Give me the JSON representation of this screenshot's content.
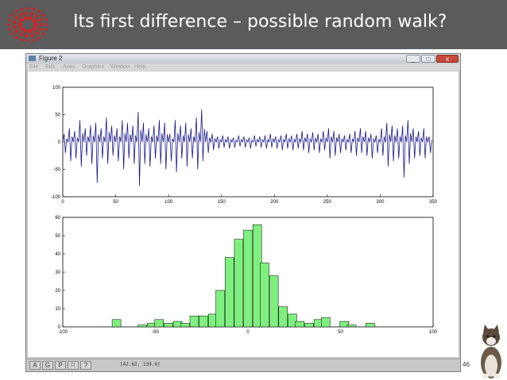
{
  "slide": {
    "title": "Its first difference – possible random walk?",
    "page_number": "46"
  },
  "window": {
    "title": "Figure 2",
    "buttons": [
      "_",
      "□",
      "x"
    ],
    "menu": [
      "File",
      "Edit",
      "Axes",
      "Graphics",
      "Window",
      "Help"
    ],
    "toolbar_buttons": [
      "A",
      "G",
      "P",
      "R",
      "?"
    ],
    "coordinates": "[42.62, 139.9]"
  },
  "chart_data": [
    {
      "type": "line",
      "title": "",
      "xlabel": "",
      "ylabel": "",
      "xlim": [
        0,
        350
      ],
      "ylim": [
        -100,
        100
      ],
      "xticks": [
        0,
        50,
        100,
        150,
        200,
        250,
        300,
        350
      ],
      "yticks": [
        -100,
        -50,
        0,
        50,
        100
      ],
      "xtick_labels": [
        "0",
        "50",
        "100",
        "150",
        "200",
        "250",
        "300",
        "350"
      ],
      "ytick_labels": [
        "-100",
        "-50",
        "0",
        "50",
        "100"
      ],
      "color": "#1a1a8c",
      "grid": false,
      "envelope": {
        "x": [
          0,
          5,
          10,
          15,
          20,
          25,
          30,
          35,
          40,
          45,
          50,
          55,
          60,
          65,
          70,
          75,
          80,
          85,
          90,
          95,
          100,
          105,
          110,
          115,
          120,
          125,
          130,
          135,
          140,
          145,
          150,
          155,
          160,
          165,
          170,
          175,
          180,
          185,
          190,
          195,
          200,
          205,
          210,
          215,
          220,
          225,
          230,
          235,
          240,
          245,
          250,
          255,
          260,
          265,
          270,
          275,
          280,
          285,
          290,
          295,
          300,
          305,
          310,
          315,
          320,
          325,
          330,
          335,
          340,
          345
        ],
        "max": [
          15,
          25,
          20,
          40,
          25,
          30,
          35,
          25,
          45,
          30,
          25,
          40,
          35,
          30,
          55,
          35,
          25,
          30,
          40,
          35,
          15,
          40,
          30,
          35,
          25,
          45,
          60,
          20,
          15,
          10,
          12,
          10,
          8,
          12,
          10,
          8,
          12,
          10,
          12,
          15,
          10,
          12,
          15,
          12,
          15,
          20,
          15,
          18,
          15,
          20,
          25,
          20,
          15,
          12,
          15,
          20,
          25,
          20,
          15,
          12,
          25,
          35,
          30,
          25,
          30,
          40,
          25,
          20,
          25,
          10
        ],
        "min": [
          -20,
          -35,
          -30,
          -45,
          -25,
          -40,
          -75,
          -30,
          -40,
          -25,
          -35,
          -50,
          -30,
          -40,
          -80,
          -40,
          -45,
          -30,
          -40,
          -50,
          -35,
          -55,
          -30,
          -45,
          -30,
          -50,
          -35,
          -20,
          -15,
          -12,
          -10,
          -12,
          -10,
          -8,
          -10,
          -12,
          -8,
          -10,
          -12,
          -10,
          -12,
          -15,
          -12,
          -15,
          -12,
          -15,
          -20,
          -15,
          -20,
          -15,
          -30,
          -25,
          -20,
          -15,
          -20,
          -25,
          -20,
          -25,
          -30,
          -20,
          -25,
          -45,
          -35,
          -30,
          -65,
          -40,
          -30,
          -25,
          -30,
          -20
        ]
      }
    },
    {
      "type": "bar",
      "title": "",
      "xlabel": "",
      "ylabel": "",
      "xlim": [
        -100,
        100
      ],
      "ylim": [
        0,
        60
      ],
      "xticks": [
        -100,
        -50,
        0,
        50,
        100
      ],
      "yticks": [
        0,
        10,
        20,
        30,
        40,
        50,
        60
      ],
      "xtick_labels": [
        "-100",
        "-50",
        "0",
        "50",
        "100"
      ],
      "ytick_labels": [
        "0",
        "10",
        "20",
        "30",
        "40",
        "50",
        "60"
      ],
      "color": "#7ff07f",
      "bin_width": 4.7,
      "bin_centers": [
        -71,
        -57,
        -52,
        -48,
        -43,
        -38,
        -34,
        -29,
        -24,
        -19,
        -15,
        -10,
        -5,
        0,
        5,
        9,
        14,
        19,
        24,
        28,
        33,
        38,
        42,
        47,
        52,
        56,
        66
      ],
      "values": [
        4,
        1,
        2,
        4,
        2,
        3,
        2,
        6,
        6,
        7,
        20,
        38,
        48,
        53,
        56,
        35,
        28,
        11,
        7,
        3,
        2,
        4,
        5,
        0,
        3,
        1,
        2
      ]
    }
  ]
}
